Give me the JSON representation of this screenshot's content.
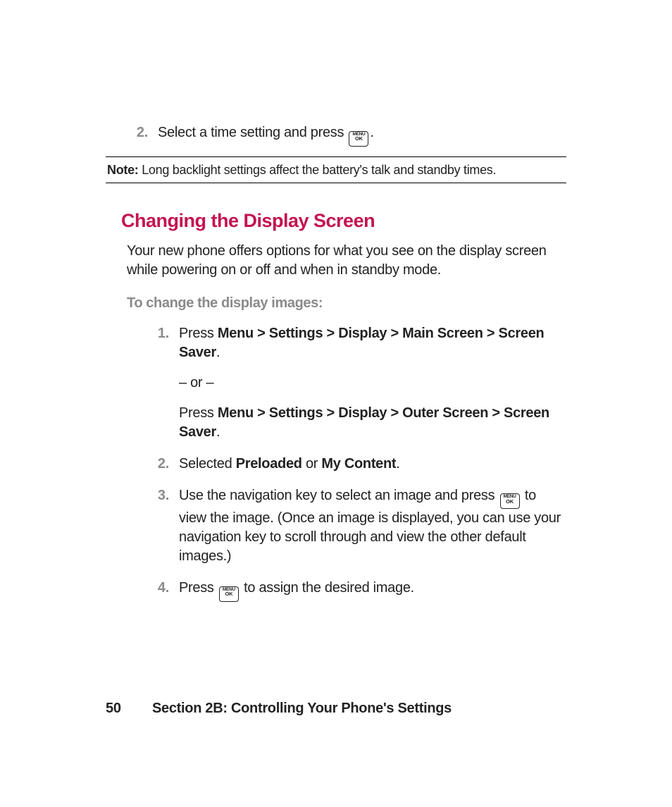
{
  "colors": {
    "heading": "#c4134e",
    "muted": "#8a8a8a",
    "text": "#222222",
    "rule": "#000000",
    "background": "#ffffff"
  },
  "typography": {
    "body_fontsize_pt": 15,
    "heading_fontsize_pt": 20,
    "font_family": "Myriad Pro / sans-serif"
  },
  "key_button": {
    "line1": "MENU",
    "line2": "OK"
  },
  "top_step": {
    "number": "2.",
    "text_before_key": "Select a time setting and press ",
    "text_after_key": "."
  },
  "note": {
    "label": "Note:",
    "text": " Long backlight settings affect the battery's talk and standby times."
  },
  "heading": "Changing the Display Screen",
  "intro": "Your new phone offers options for what you see on the display screen while powering on or off and when in standby mode.",
  "subhead": "To change the display images:",
  "steps": [
    {
      "number": "1.",
      "paragraphs": [
        {
          "pre": "Press ",
          "bold": "Menu > Settings > Display > Main Screen > Screen Saver",
          "post": "."
        },
        {
          "plain": "– or –"
        },
        {
          "pre": "Press ",
          "bold": "Menu > Settings > Display > Outer Screen > Screen Saver",
          "post": "."
        }
      ]
    },
    {
      "number": "2.",
      "paragraphs": [
        {
          "pre": "Selected ",
          "bold": "Preloaded",
          "mid": " or ",
          "bold2": "My Content",
          "post": "."
        }
      ]
    },
    {
      "number": "3.",
      "paragraphs": [
        {
          "pre_key": "Use the navigation key to select an image and press ",
          "post_key": " to view the image. (Once an image is displayed, you can use your navigation key to scroll through and view the other default images.)"
        }
      ]
    },
    {
      "number": "4.",
      "paragraphs": [
        {
          "pre_key": "Press ",
          "post_key": " to assign the desired image."
        }
      ]
    }
  ],
  "footer": {
    "page": "50",
    "section": "Section 2B: Controlling Your Phone's Settings"
  }
}
